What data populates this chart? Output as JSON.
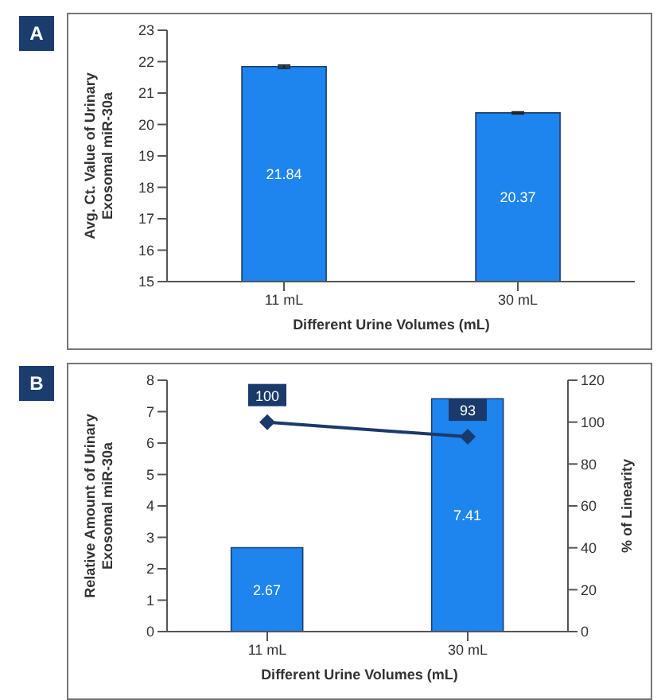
{
  "chart_data": [
    {
      "type": "bar",
      "title": "A",
      "categories": [
        "11 mL",
        "30 mL"
      ],
      "values": [
        21.84,
        20.37
      ],
      "errors": [
        0.05,
        0.03
      ],
      "color": "#1e84ee",
      "xlabel": "Different Urine Volumes (mL)",
      "ylabel": "Avg. Ct. Value of Urinary\nExosomal miR-30a",
      "ylim": [
        15,
        23
      ],
      "yticks": [
        15,
        16,
        17,
        18,
        19,
        20,
        21,
        22,
        23
      ],
      "data_labels": true,
      "grid": false,
      "legend": false
    },
    {
      "type": "bar",
      "title": "B",
      "categories": [
        "11 mL",
        "30 mL"
      ],
      "series": [
        {
          "color": "#1e84ee",
          "values": [
            2.67,
            7.41
          ]
        },
        {
          "type": "line",
          "axis": "y2",
          "color": "#1a3a6b",
          "values": [
            100,
            93
          ]
        }
      ],
      "xlabel": "Different Urine Volumes (mL)",
      "ylabel": "Relative Amount of Urinary\nExosomal miR-30a",
      "y2label": "% of Linearity",
      "ylim": [
        0,
        8
      ],
      "yticks": [
        0,
        1,
        2,
        3,
        4,
        5,
        6,
        7,
        8
      ],
      "y2lim": [
        0,
        120
      ],
      "y2ticks": [
        0,
        20,
        40,
        60,
        80,
        100,
        120
      ],
      "marker": "diamond",
      "data_labels": true,
      "grid": false,
      "legend": false
    }
  ]
}
